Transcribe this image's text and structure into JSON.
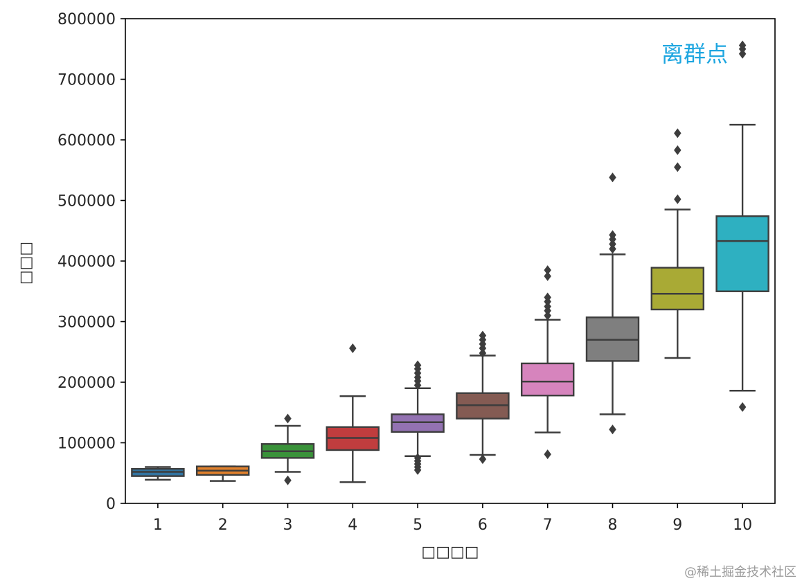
{
  "chart_data": {
    "type": "box",
    "xlabel": "□□□□",
    "ylabel": "□□□",
    "ylim": [
      0,
      800000
    ],
    "yticks": [
      "0",
      "100000",
      "200000",
      "300000",
      "400000",
      "500000",
      "600000",
      "700000",
      "800000"
    ],
    "categories": [
      "1",
      "2",
      "3",
      "4",
      "5",
      "6",
      "7",
      "8",
      "9",
      "10"
    ],
    "grid": false,
    "boxes": [
      {
        "category": "1",
        "color": "#3274a1",
        "whisker_low": 39000,
        "q1": 45000,
        "median": 52000,
        "q3": 57000,
        "whisker_high": 60000,
        "outliers": []
      },
      {
        "category": "2",
        "color": "#e1812c",
        "whisker_low": 37000,
        "q1": 47000,
        "median": 54000,
        "q3": 61000,
        "whisker_high": 61000,
        "outliers": []
      },
      {
        "category": "3",
        "color": "#3a923a",
        "whisker_low": 52000,
        "q1": 75000,
        "median": 86000,
        "q3": 98000,
        "whisker_high": 128000,
        "outliers": [
          38000,
          140000
        ]
      },
      {
        "category": "4",
        "color": "#c03d3e",
        "whisker_low": 35000,
        "q1": 88000,
        "median": 108000,
        "q3": 126000,
        "whisker_high": 177000,
        "outliers": [
          256000
        ]
      },
      {
        "category": "5",
        "color": "#9372b2",
        "whisker_low": 78000,
        "q1": 118000,
        "median": 134000,
        "q3": 147000,
        "whisker_high": 190000,
        "outliers": [
          55000,
          60000,
          65000,
          70000,
          75000,
          195000,
          202000,
          208000,
          215000,
          222000,
          228000
        ]
      },
      {
        "category": "6",
        "color": "#845b53",
        "whisker_low": 80000,
        "q1": 140000,
        "median": 162000,
        "q3": 182000,
        "whisker_high": 244000,
        "outliers": [
          73000,
          248000,
          256000,
          263000,
          270000,
          277000
        ]
      },
      {
        "category": "7",
        "color": "#d684bd",
        "whisker_low": 117000,
        "q1": 178000,
        "median": 201000,
        "q3": 231000,
        "whisker_high": 303000,
        "outliers": [
          81000,
          310000,
          318000,
          325000,
          333000,
          340000,
          375000,
          385000
        ]
      },
      {
        "category": "8",
        "color": "#7f7f7f",
        "whisker_low": 147000,
        "q1": 235000,
        "median": 270000,
        "q3": 307000,
        "whisker_high": 411000,
        "outliers": [
          122000,
          420000,
          428000,
          436000,
          443000,
          538000
        ]
      },
      {
        "category": "9",
        "color": "#a9aa35",
        "whisker_low": 240000,
        "q1": 320000,
        "median": 346000,
        "q3": 389000,
        "whisker_high": 485000,
        "outliers": [
          502000,
          555000,
          583000,
          611000
        ]
      },
      {
        "category": "10",
        "color": "#2eb0c1",
        "whisker_low": 186000,
        "q1": 350000,
        "median": 433000,
        "q3": 474000,
        "whisker_high": 625000,
        "outliers": [
          159000,
          742000,
          750000,
          756000
        ]
      }
    ],
    "annotation": {
      "text": "离群点",
      "color": "#1ea6e0"
    }
  },
  "watermark": "@稀土掘金技术社区",
  "colors": {
    "outline": "#3d3d3d",
    "axis": "#000000",
    "text": "#262626"
  }
}
